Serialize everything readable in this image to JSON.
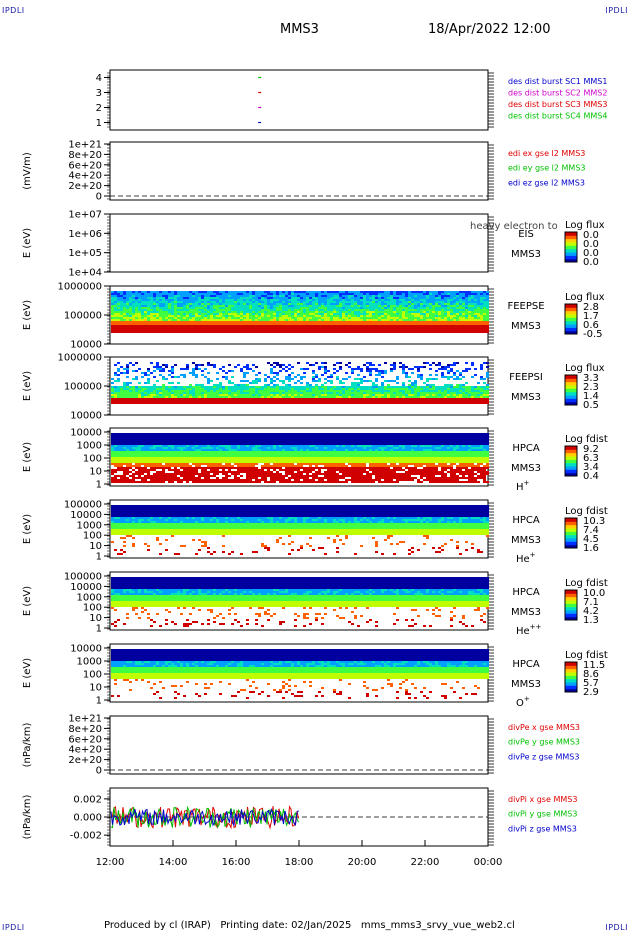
{
  "corner_label": "IPDLI",
  "header": {
    "mission": "MMS3",
    "datetime": "18/Apr/2022 12:00"
  },
  "footer": {
    "text": "Produced by cl (IRAP)   Printing date: 02/Jan/2025   mms_mms3_srvy_vue_web2.cl"
  },
  "colors": {
    "red": "#e00000",
    "green": "#00c000",
    "blue": "#0000cc",
    "magenta": "#cc00cc",
    "spectrogram_scale": [
      "#0000a0",
      "#0030ff",
      "#00a0ff",
      "#00e0c0",
      "#40ff40",
      "#c0ff00",
      "#ffd000",
      "#ff6000",
      "#d00000"
    ]
  },
  "chart_data": {
    "type": "line",
    "x_axis": {
      "range": [
        "12:00",
        "00:00"
      ],
      "ticks": [
        "12:00",
        "14:00",
        "16:00",
        "18:00",
        "20:00",
        "22:00",
        "00:00"
      ]
    },
    "panels": [
      {
        "id": "burst",
        "yticks": [
          "1",
          "2",
          "3",
          "4"
        ],
        "ylim": [
          0.5,
          4.5
        ],
        "legend": [
          "des dist burst SC1 MMS1",
          "des dist burst SC2 MMS2",
          "des dist burst SC3 MMS3",
          "des dist burst SC4 MMS4"
        ],
        "legend_colors": [
          "#0000cc",
          "#cc00cc",
          "#e00000",
          "#00c000"
        ],
        "marks": [
          {
            "x": "16:45",
            "y": 4,
            "color": "#00c000"
          },
          {
            "x": "16:45",
            "y": 3,
            "color": "#e00000"
          },
          {
            "x": "16:45",
            "y": 2,
            "color": "#cc00cc"
          },
          {
            "x": "16:45",
            "y": 1,
            "color": "#0000cc"
          }
        ]
      },
      {
        "id": "edi",
        "ylabel": "(mV/m)",
        "yticks": [
          "0",
          "2e+20",
          "4e+20",
          "6e+20",
          "8e+20",
          "1e+21"
        ],
        "legend": [
          "edi ex gse l2 MMS3",
          "edi ey gse l2 MMS3",
          "edi ez gse l2 MMS3"
        ],
        "legend_colors": [
          "#e00000",
          "#00c000",
          "#0000cc"
        ]
      },
      {
        "id": "eis",
        "ylabel": "E (eV)",
        "yticks": [
          "1e+04",
          "1e+05",
          "1e+06",
          "1e+07"
        ],
        "instrument": "EIS",
        "species_top": "heavy electron to",
        "spacecraft": "MMS3",
        "cbar_title": "Log flux",
        "cbar_ticks": [
          "0.0",
          "0.0",
          "0.0",
          "0.0"
        ]
      },
      {
        "id": "feepse",
        "ylabel": "E (eV)",
        "yticks": [
          "10000",
          "100000",
          "1000000"
        ],
        "instrument": "FEEPSE",
        "spacecraft": "MMS3",
        "cbar_title": "Log flux",
        "cbar_ticks": [
          "2.8",
          "1.7",
          "0.6",
          "-0.5"
        ],
        "data_end": "00:00"
      },
      {
        "id": "feepsi",
        "ylabel": "E (eV)",
        "yticks": [
          "10000",
          "100000",
          "1000000"
        ],
        "instrument": "FEEPSI",
        "spacecraft": "MMS3",
        "cbar_title": "Log flux",
        "cbar_ticks": [
          "3.3",
          "2.3",
          "1.4",
          "0.5"
        ],
        "data_end": "00:00"
      },
      {
        "id": "hpca_h",
        "ylabel": "E (eV)",
        "yticks": [
          "1",
          "10",
          "100",
          "1000",
          "10000"
        ],
        "instrument": "HPCA",
        "spacecraft": "MMS3",
        "species_base": "H",
        "species_sup": "+",
        "cbar_title": "Log fdist",
        "cbar_ticks": [
          "9.2",
          "6.3",
          "3.4",
          "0.4"
        ],
        "data_end": "00:00"
      },
      {
        "id": "hpca_he",
        "ylabel": "E (eV)",
        "yticks": [
          "1",
          "10",
          "100",
          "1000",
          "10000",
          "100000"
        ],
        "instrument": "HPCA",
        "spacecraft": "MMS3",
        "species_base": "He",
        "species_sup": "+",
        "cbar_title": "Log fdist",
        "cbar_ticks": [
          "10.3",
          "7.4",
          "4.5",
          "1.6"
        ],
        "data_end": "00:00"
      },
      {
        "id": "hpca_hepp",
        "ylabel": "E (eV)",
        "yticks": [
          "1",
          "10",
          "100",
          "1000",
          "10000",
          "100000"
        ],
        "instrument": "HPCA",
        "spacecraft": "MMS3",
        "species_base": "He",
        "species_sup": "++",
        "cbar_title": "Log fdist",
        "cbar_ticks": [
          "10.0",
          "7.1",
          "4.2",
          "1.3"
        ],
        "data_end": "00:00"
      },
      {
        "id": "hpca_o",
        "ylabel": "E (eV)",
        "yticks": [
          "1",
          "10",
          "100",
          "1000",
          "10000"
        ],
        "instrument": "HPCA",
        "spacecraft": "MMS3",
        "species_base": "O",
        "species_sup": "+",
        "cbar_title": "Log fdist",
        "cbar_ticks": [
          "11.5",
          "8.6",
          "5.7",
          "2.9"
        ],
        "data_end": "00:00"
      },
      {
        "id": "divpe",
        "ylabel": "(nPa/km)",
        "yticks": [
          "0",
          "2e+20",
          "4e+20",
          "6e+20",
          "8e+20",
          "1e+21"
        ],
        "legend": [
          "divPe x gse MMS3",
          "divPe y gse MMS3",
          "divPe z gse MMS3"
        ],
        "legend_colors": [
          "#e00000",
          "#00c000",
          "#0000cc"
        ]
      },
      {
        "id": "divpi",
        "ylabel": "(nPa/km)",
        "yticks": [
          "-0.002",
          "0.000",
          "0.002"
        ],
        "ylim": [
          -0.0032,
          0.0032
        ],
        "legend": [
          "divPi x gse MMS3",
          "divPi y gse MMS3",
          "divPi z gse MMS3"
        ],
        "legend_colors": [
          "#e00000",
          "#00c000",
          "#0000cc"
        ],
        "data_end": "18:00",
        "series_amplitude": [
          0.0012,
          0.0012,
          0.0009
        ]
      }
    ]
  }
}
